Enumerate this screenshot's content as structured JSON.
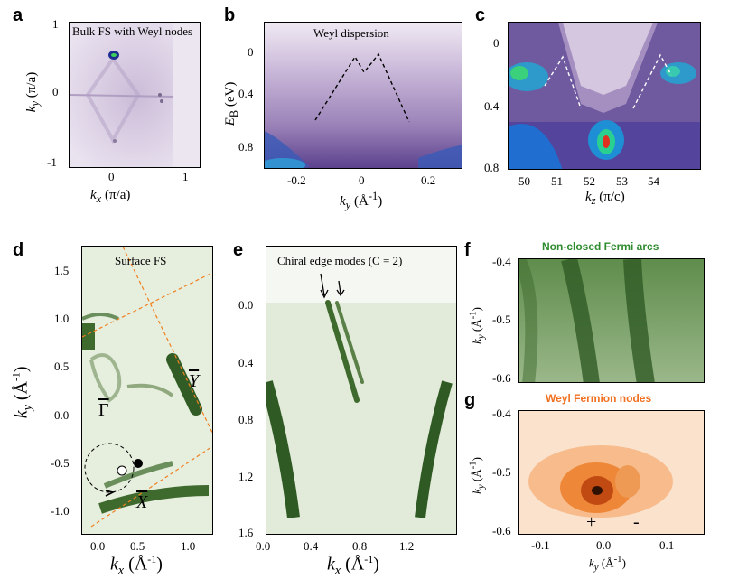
{
  "panels": {
    "a": {
      "label": "a",
      "title": "Bulk FS with Weyl nodes",
      "xlabel": "k",
      "xlabel_sub": "x",
      "xlabel_unit": "(π/a)",
      "ylabel": "k",
      "ylabel_sub": "y",
      "ylabel_unit": "(π/a)",
      "xticks": [
        "0",
        "1"
      ],
      "yticks": [
        "1",
        "0",
        "-1"
      ]
    },
    "b": {
      "label": "b",
      "title": "Weyl dispersion",
      "xlabel": "k",
      "xlabel_sub": "y",
      "xlabel_unit": "(Å",
      "xlabel_sup": "-1",
      "ylabel": "E",
      "ylabel_sub": "B",
      "ylabel_unit": "(eV)",
      "xticks": [
        "-0.2",
        "0",
        "0.2"
      ],
      "yticks": [
        "0",
        "0.4",
        "0.8"
      ]
    },
    "c": {
      "label": "c",
      "xlabel": "k",
      "xlabel_sub": "z",
      "xlabel_unit": "(π/c)",
      "xticks": [
        "50",
        "51",
        "52",
        "53",
        "54"
      ],
      "yticks": [
        "0",
        "0.4",
        "0.8"
      ]
    },
    "d": {
      "label": "d",
      "title": "Surface FS",
      "xlabel": "k",
      "xlabel_sub": "x",
      "xlabel_unit": "(Å",
      "xlabel_sup": "-1",
      "ylabel": "k",
      "ylabel_sub": "y",
      "ylabel_unit": "(Å",
      "ylabel_sup": "-1",
      "xticks": [
        "0.0",
        "0.5",
        "1.0"
      ],
      "yticks": [
        "1.5",
        "1.0",
        "0.5",
        "0.0",
        "-0.5",
        "-1.0"
      ],
      "gamma_label": "Γ",
      "y_label": "Y",
      "x_label": "X"
    },
    "e": {
      "label": "e",
      "title": "Chiral edge modes (C = 2)",
      "xlabel": "k",
      "xlabel_sub": "x",
      "xlabel_unit": "(Å",
      "xlabel_sup": "-1",
      "xticks": [
        "0.0",
        "0.4",
        "0.8",
        "1.2"
      ],
      "yticks": [
        "0.0",
        "0.4",
        "0.8",
        "1.2",
        "1.6"
      ]
    },
    "f": {
      "label": "f",
      "title": "Non-closed Fermi arcs",
      "ylabel": "k",
      "ylabel_sub": "y",
      "ylabel_unit": "(Å",
      "ylabel_sup": "-1",
      "yticks": [
        "-0.4",
        "-0.5",
        "-0.6"
      ]
    },
    "g": {
      "label": "g",
      "title": "Weyl Fermion nodes",
      "xlabel": "k",
      "xlabel_sub": "y",
      "xlabel_unit": "(Å",
      "xlabel_sup": "-1",
      "ylabel": "k",
      "ylabel_sub": "y",
      "ylabel_unit": "(Å",
      "ylabel_sup": "-1",
      "xticks": [
        "-0.1",
        "0.0",
        "0.1"
      ],
      "yticks": [
        "-0.4",
        "-0.5",
        "-0.6"
      ],
      "plus": "+",
      "minus": "-"
    }
  },
  "colors": {
    "purple_bg": "#e6dcec",
    "purple_dark": "#4a2e78",
    "blue": "#2a5cc8",
    "green_bg": "#dfe8d4",
    "green_dark": "#2f5a24",
    "orange": "#f07020",
    "orange_bg": "#fbe7d4",
    "fa_title": "#2e8b2e",
    "weyl_title": "#f07020",
    "dash": "#f08020"
  }
}
